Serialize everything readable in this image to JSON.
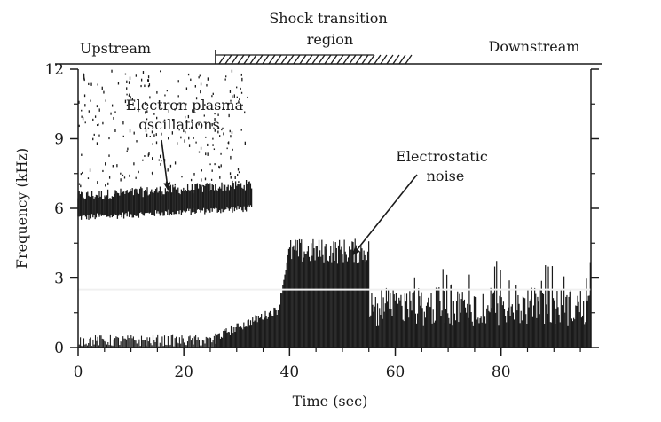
{
  "chart_data": {
    "type": "scatter",
    "title": "",
    "xlabel": "Time (sec)",
    "ylabel": "Frequency (kHz)",
    "xlim": [
      0,
      97
    ],
    "ylim": [
      0,
      12
    ],
    "x_ticks": [
      0,
      20,
      40,
      60,
      80
    ],
    "y_ticks": [
      0,
      3,
      6,
      9,
      12
    ],
    "grid": false,
    "legend": "none",
    "regions": [
      {
        "label": "Upstream",
        "x_start": 0,
        "x_end": 26
      },
      {
        "label": "Shock transition region",
        "label_lines": [
          "Shock transition",
          "region"
        ],
        "x_start": 26,
        "x_end": 65
      },
      {
        "label": "Downstream",
        "x_start": 65,
        "x_end": 97
      }
    ],
    "annotations": [
      {
        "text": "Electron plasma oscillations",
        "lines": [
          "Electron plasma",
          "oscillations"
        ],
        "points_to": {
          "x": 17,
          "y": 6.8
        }
      },
      {
        "text": "Electrostatic noise",
        "lines": [
          "Electrostatic",
          "noise"
        ],
        "points_to": {
          "x": 52,
          "y": 4.0
        }
      }
    ],
    "features": [
      {
        "name": "electron plasma oscillation band",
        "x_range": [
          0,
          33
        ],
        "freq_low_khz": 5.6,
        "freq_high_khz": 6.9
      },
      {
        "name": "electrostatic noise",
        "x_range": [
          38,
          97
        ],
        "freq_low_khz": 0,
        "freq_high_khz": 4.6
      },
      {
        "name": "narrowband line",
        "x_range": [
          0,
          97
        ],
        "freq_khz": 2.5
      }
    ],
    "color": "#1a1a1a"
  }
}
